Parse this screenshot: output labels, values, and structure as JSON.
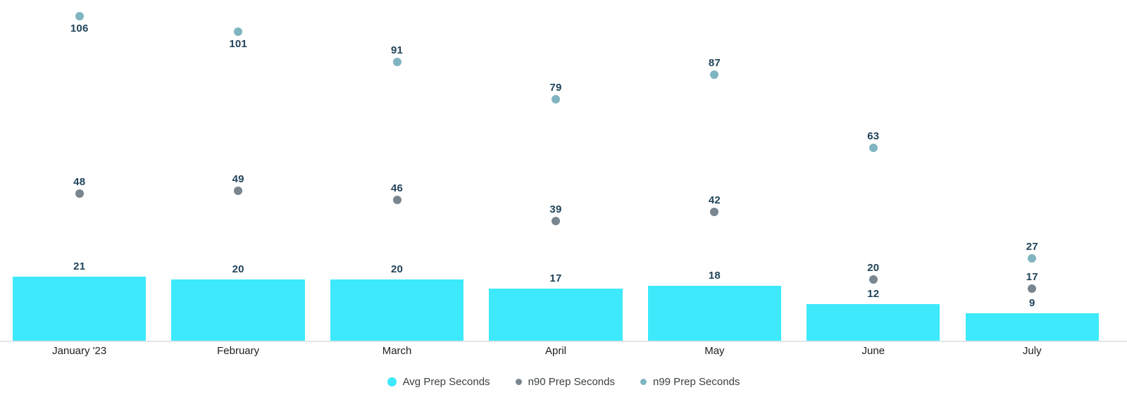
{
  "chart_data": {
    "type": "bar",
    "subtype": "combo-bar-with-scatter-points",
    "title": "",
    "xlabel": "",
    "ylabel": "",
    "categories": [
      "January '23",
      "February",
      "March",
      "April",
      "May",
      "June",
      "July"
    ],
    "series": [
      {
        "name": "Avg Prep Seconds",
        "type": "bar",
        "color": "#3DE9FB",
        "values": [
          21,
          20,
          20,
          17,
          18,
          12,
          9
        ]
      },
      {
        "name": "n90 Prep Seconds",
        "type": "point",
        "color": "#79858F",
        "values": [
          48,
          49,
          46,
          39,
          42,
          20,
          17
        ]
      },
      {
        "name": "n99 Prep Seconds",
        "type": "point",
        "color": "#7FB5C1",
        "values": [
          106,
          101,
          91,
          79,
          87,
          63,
          27
        ],
        "label_below": [
          true,
          true,
          false,
          false,
          false,
          false,
          false
        ]
      }
    ],
    "ylim": [
      0,
      111.3
    ],
    "grid": false,
    "value_labels": "shown",
    "legend_position": "bottom-center",
    "colors": {
      "value_label": "#21445A",
      "axis_label": "#202124",
      "legend_text": "#3C4043",
      "axis_line": "#E2E5E9",
      "background": "#FFFFFF"
    }
  }
}
